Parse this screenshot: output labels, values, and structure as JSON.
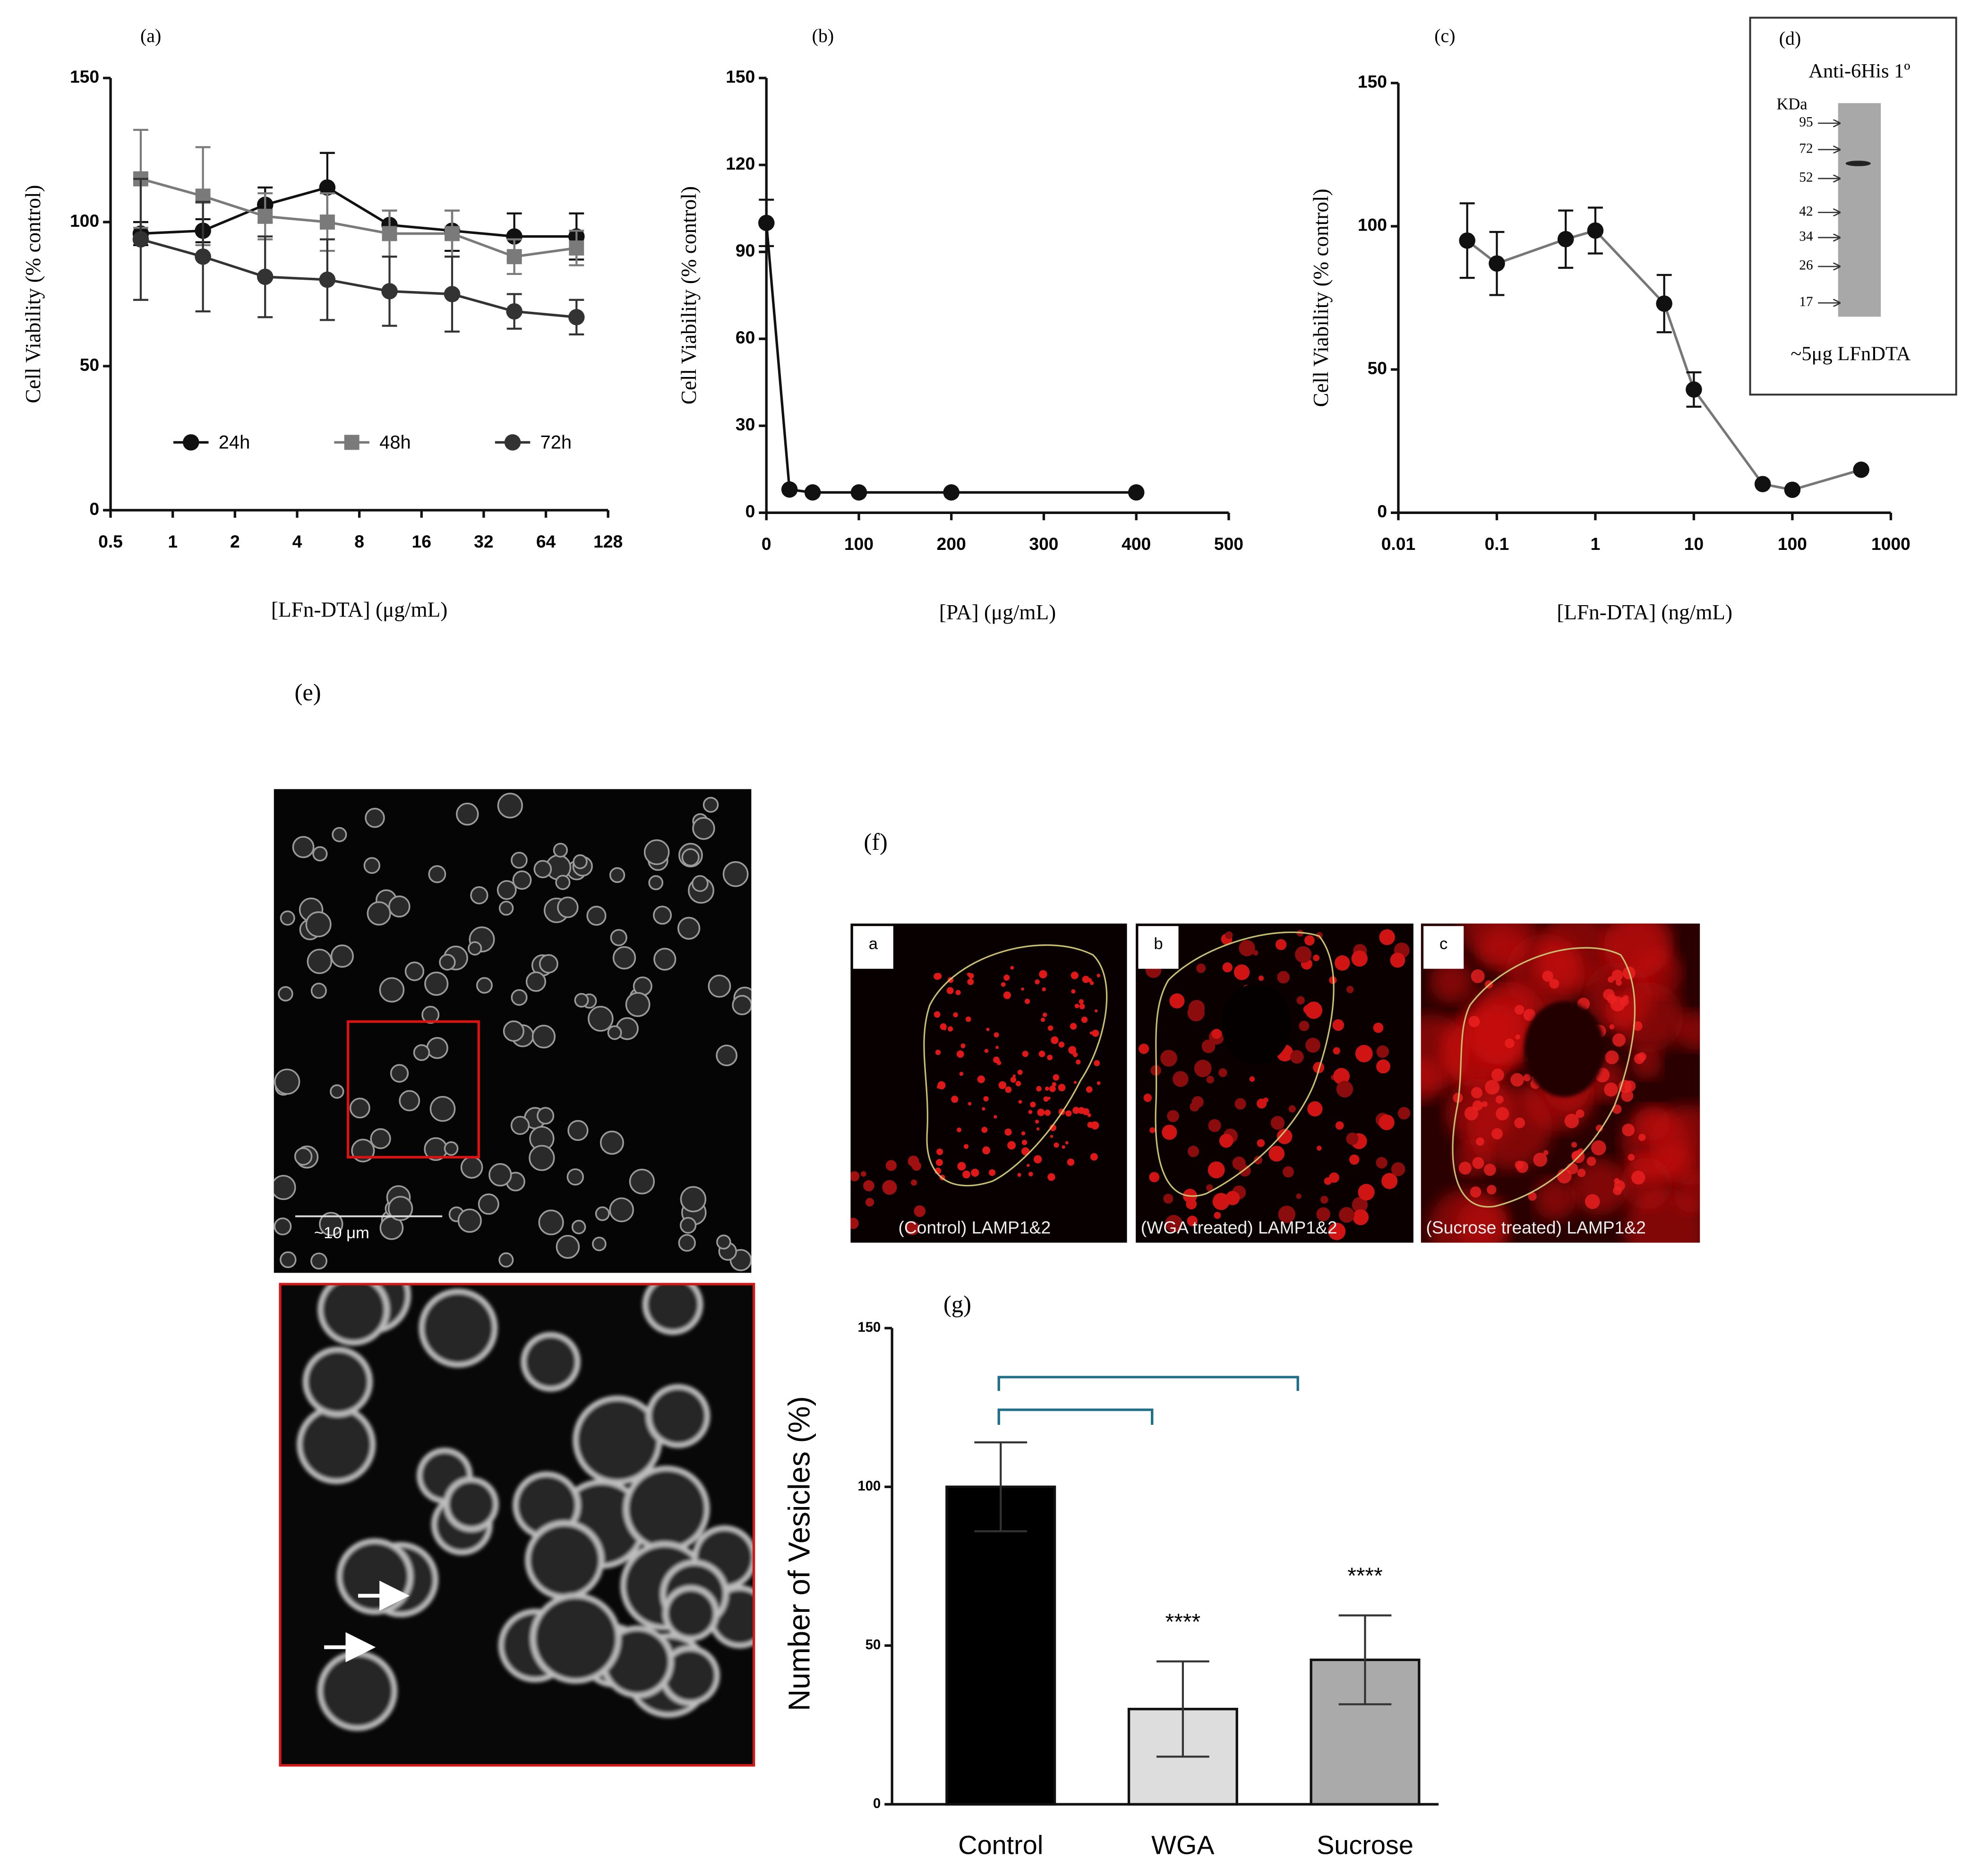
{
  "chart_data": [
    {
      "type": "line",
      "panel_label": "(a)",
      "x_label": "[LFn-DTA] (μg/mL)",
      "y_label": "Cell Viability  (% control)",
      "xlog": true,
      "xlim": [
        0.5,
        128
      ],
      "xticks": [
        0.5,
        1,
        2,
        4,
        8,
        16,
        32,
        64,
        128
      ],
      "ylim": [
        0,
        150
      ],
      "yticks": [
        0,
        50,
        100,
        150
      ],
      "legend": "bottom",
      "x": [
        0.7,
        1.4,
        2.8,
        5.6,
        11.2,
        22.5,
        45,
        90
      ],
      "series": [
        {
          "name": "24h",
          "color": "#111111",
          "marker": "circle",
          "values": [
            96,
            97,
            106,
            112,
            99,
            97,
            95,
            95
          ],
          "errors": [
            4,
            4,
            6,
            12,
            5,
            7,
            8,
            8
          ]
        },
        {
          "name": "48h",
          "color": "#7a7a7a",
          "marker": "square",
          "values": [
            115,
            109,
            102,
            100,
            96,
            96,
            88,
            91
          ],
          "errors": [
            17,
            17,
            8,
            10,
            8,
            8,
            6,
            6
          ]
        },
        {
          "name": "72h",
          "color": "#333333",
          "marker": "circle",
          "values": [
            94,
            88,
            81,
            80,
            76,
            75,
            69,
            67
          ],
          "errors": [
            21,
            19,
            14,
            14,
            12,
            13,
            6,
            6
          ]
        }
      ]
    },
    {
      "type": "line",
      "panel_label": "(b)",
      "x_label": "[PA] (μg/mL)",
      "y_label": "Cell Viability  (% control)",
      "xlim": [
        0,
        500
      ],
      "xticks": [
        0,
        100,
        200,
        300,
        400,
        500
      ],
      "ylim": [
        0,
        150
      ],
      "yticks": [
        0,
        30,
        60,
        90,
        120,
        150
      ],
      "x": [
        0,
        25,
        50,
        100,
        200,
        400
      ],
      "series": [
        {
          "color": "#111111",
          "marker": "circle",
          "values": [
            100,
            8,
            7,
            7,
            7,
            7
          ],
          "errors": [
            8,
            null,
            null,
            null,
            null,
            null
          ]
        }
      ]
    },
    {
      "type": "line",
      "panel_label": "(c)",
      "x_label": "[LFn-DTA] (ng/mL)",
      "y_label": "Cell Viability  (% control)",
      "xlog": true,
      "xlim": [
        0.01,
        1000
      ],
      "xticks": [
        0.01,
        0.1,
        1,
        10,
        100,
        1000
      ],
      "ylim": [
        0,
        150
      ],
      "yticks": [
        0,
        50,
        100,
        150
      ],
      "x": [
        0.05,
        0.1,
        0.5,
        1,
        5,
        10,
        50,
        100,
        500
      ],
      "series": [
        {
          "color": "#111111",
          "line_color": "#777777",
          "marker": "circle",
          "values": [
            95,
            87,
            95.5,
            98.5,
            73,
            43,
            10,
            8,
            15
          ],
          "errors": [
            13,
            11,
            10,
            8,
            10,
            6,
            null,
            null,
            null
          ]
        }
      ]
    },
    {
      "type": "bar",
      "panel_label": "(g)",
      "y_label": "Number of Vesicles (%)",
      "categories": [
        "Control",
        "WGA",
        "Sucrose"
      ],
      "values": [
        100,
        30,
        45.5
      ],
      "errors": [
        14,
        15,
        14
      ],
      "colors": [
        "#000000",
        "#dddddd",
        "#aaaaaa"
      ],
      "annotations": [
        null,
        "****",
        "****"
      ],
      "ylim": [
        0,
        150
      ],
      "yticks": [
        0,
        50,
        100,
        150
      ]
    }
  ],
  "panels": {
    "d": {
      "label": "(d)",
      "title": "Anti-6His 1º",
      "unit": "KDa",
      "markers": [
        95,
        72,
        52,
        42,
        34,
        26,
        17
      ],
      "caption": "~5μg LFnDTA"
    },
    "e": {
      "label": "(e)",
      "scale_bar": "~10 μm"
    },
    "f": {
      "label": "(f)",
      "labels": [
        "a",
        "b",
        "c"
      ],
      "captions": [
        "(Control) LAMP1&2",
        "(WGA treated) LAMP1&2",
        "(Sucrose treated) LAMP1&2"
      ]
    }
  }
}
